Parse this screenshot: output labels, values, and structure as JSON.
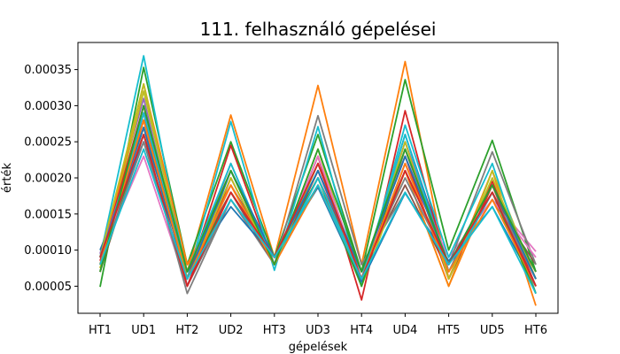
{
  "chart_data": {
    "type": "line",
    "title": "111. felhasználó gépelései",
    "xlabel": "gépelések",
    "ylabel": "érték",
    "categories": [
      "HT1",
      "UD1",
      "HT2",
      "UD2",
      "HT3",
      "UD3",
      "HT4",
      "UD4",
      "HT5",
      "UD5",
      "HT6"
    ],
    "ylim": [
      1.25e-05,
      0.0003875
    ],
    "yticks": [
      5e-05,
      0.0001,
      0.00015,
      0.0002,
      0.00025,
      0.0003,
      0.00035
    ],
    "ytick_labels": [
      "0.00005",
      "0.00010",
      "0.00015",
      "0.00020",
      "0.00025",
      "0.00030",
      "0.00035"
    ],
    "grid": false,
    "series": [
      {
        "color": "#1f77b4",
        "values": [
          9e-05,
          0.00029,
          5e-05,
          0.00021,
          8e-05,
          0.00022,
          6e-05,
          0.00026,
          8e-05,
          0.00019,
          6e-05
        ]
      },
      {
        "color": "#ff7f0e",
        "values": [
          8e-05,
          0.00027,
          7e-05,
          0.000287,
          9e-05,
          0.000328,
          8e-05,
          0.000361,
          6e-05,
          0.00021,
          2.3e-05
        ]
      },
      {
        "color": "#2ca02c",
        "values": [
          4.9e-05,
          0.000353,
          8e-05,
          0.00025,
          9e-05,
          0.00026,
          7e-05,
          0.000336,
          0.0001,
          0.000252,
          7e-05
        ]
      },
      {
        "color": "#d62728",
        "values": [
          7e-05,
          0.00028,
          6e-05,
          0.000245,
          8e-05,
          0.00023,
          3.1e-05,
          0.000293,
          7e-05,
          0.000195,
          5e-05
        ]
      },
      {
        "color": "#9467bd",
        "values": [
          9.5e-05,
          0.00031,
          6e-05,
          0.00022,
          8e-05,
          0.00021,
          6e-05,
          0.00025,
          8e-05,
          0.00018,
          6e-05
        ]
      },
      {
        "color": "#8c564b",
        "values": [
          7e-05,
          0.00026,
          8e-05,
          0.00019,
          9e-05,
          0.0002,
          7e-05,
          0.00019,
          7e-05,
          0.00017,
          8e-05
        ]
      },
      {
        "color": "#e377c2",
        "values": [
          9e-05,
          0.00023,
          5e-05,
          0.00018,
          8e-05,
          0.00019,
          6e-05,
          0.00022,
          9e-05,
          0.00017,
          9.8e-05
        ]
      },
      {
        "color": "#7f7f7f",
        "values": [
          9e-05,
          0.00026,
          4e-05,
          0.00017,
          8e-05,
          0.000286,
          8e-05,
          0.00018,
          8e-05,
          0.000236,
          8e-05
        ]
      },
      {
        "color": "#bcbd22",
        "values": [
          7.5e-05,
          0.00032,
          7e-05,
          0.00021,
          8e-05,
          0.00024,
          5e-05,
          0.00021,
          5e-05,
          0.00021,
          6e-05
        ]
      },
      {
        "color": "#17becf",
        "values": [
          9e-05,
          0.000369,
          6e-05,
          0.000278,
          7.2e-05,
          0.000271,
          5e-05,
          0.000273,
          9e-05,
          0.00022,
          4e-05
        ]
      },
      {
        "color": "#1f77b4",
        "values": [
          0.0001,
          0.00025,
          7e-05,
          0.00016,
          9e-05,
          0.000187,
          5.6e-05,
          0.000179,
          8.5e-05,
          0.00016,
          5e-05
        ]
      },
      {
        "color": "#ff7f0e",
        "values": [
          8e-05,
          0.00033,
          8e-05,
          0.00019,
          8e-05,
          0.0002,
          6e-05,
          0.00021,
          5e-05,
          0.00019,
          4e-05
        ]
      },
      {
        "color": "#2ca02c",
        "values": [
          7e-05,
          0.00027,
          6e-05,
          0.00018,
          9e-05,
          0.0002,
          5e-05,
          0.00024,
          7e-05,
          0.00018,
          4e-05
        ]
      },
      {
        "color": "#d62728",
        "values": [
          8.5e-05,
          0.0003,
          5e-05,
          0.0002,
          8e-05,
          0.00021,
          7e-05,
          0.00023,
          6e-05,
          0.00019,
          5e-05
        ]
      },
      {
        "color": "#9467bd",
        "values": [
          9e-05,
          0.00028,
          6e-05,
          0.00021,
          9e-05,
          0.00022,
          6e-05,
          0.00022,
          7e-05,
          0.00018,
          6e-05
        ]
      },
      {
        "color": "#8c564b",
        "values": [
          7e-05,
          0.00029,
          7e-05,
          0.00018,
          8e-05,
          0.00021,
          7e-05,
          0.00021,
          8e-05,
          0.00018,
          7e-05
        ]
      },
      {
        "color": "#e377c2",
        "values": [
          8e-05,
          0.00027,
          6e-05,
          0.00019,
          8e-05,
          0.00023,
          6e-05,
          0.00024,
          7e-05,
          0.00017,
          9e-05
        ]
      },
      {
        "color": "#7f7f7f",
        "values": [
          8e-05,
          0.00025,
          5e-05,
          0.00017,
          9e-05,
          0.00019,
          7e-05,
          0.0002,
          8e-05,
          0.00018,
          6e-05
        ]
      },
      {
        "color": "#bcbd22",
        "values": [
          9e-05,
          0.00033,
          6e-05,
          0.0002,
          8e-05,
          0.00022,
          6e-05,
          0.00025,
          6e-05,
          0.0002,
          6e-05
        ]
      },
      {
        "color": "#17becf",
        "values": [
          8e-05,
          0.00029,
          7e-05,
          0.00022,
          8e-05,
          0.0002,
          6e-05,
          0.00026,
          7e-05,
          0.00018,
          5e-05
        ]
      },
      {
        "color": "#1f77b4",
        "values": [
          9e-05,
          0.00027,
          6e-05,
          0.00021,
          9e-05,
          0.00021,
          7e-05,
          0.00023,
          8e-05,
          0.00019,
          6e-05
        ]
      },
      {
        "color": "#ff7f0e",
        "values": [
          8e-05,
          0.00028,
          6e-05,
          0.00019,
          8e-05,
          0.00019,
          6e-05,
          0.00022,
          7e-05,
          0.00017,
          5e-05
        ]
      },
      {
        "color": "#2ca02c",
        "values": [
          7e-05,
          0.0003,
          7e-05,
          0.00021,
          8e-05,
          0.00024,
          7e-05,
          0.00024,
          8e-05,
          0.00019,
          7e-05
        ]
      },
      {
        "color": "#d62728",
        "values": [
          9e-05,
          0.00026,
          5e-05,
          0.00018,
          9e-05,
          0.00022,
          6e-05,
          0.00021,
          8e-05,
          0.00018,
          5e-05
        ]
      },
      {
        "color": "#17becf",
        "values": [
          8e-05,
          0.00024,
          6e-05,
          0.00017,
          9e-05,
          0.00019,
          6e-05,
          0.00018,
          8e-05,
          0.00016,
          4e-05
        ]
      }
    ]
  }
}
